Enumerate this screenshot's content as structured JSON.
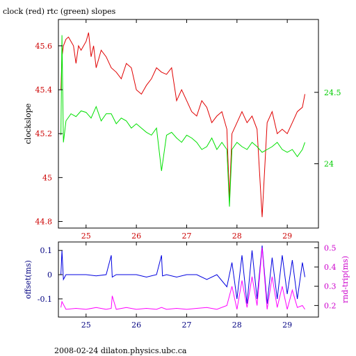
{
  "title": "clock (red) rtc (green) slopes",
  "footer": "2008-02-24  dilaton.physics.ubc.ca",
  "chart_data": [
    {
      "type": "line",
      "title": "clock (red) rtc (green) slopes",
      "xlabel": "",
      "ylabel": "clockslope",
      "xlim": [
        24.45,
        29.62
      ],
      "ylim": [
        44.77,
        45.72
      ],
      "y2lim": [
        23.55,
        25.01
      ],
      "x_ticks": [
        25,
        26,
        27,
        28,
        29
      ],
      "y_ticks": [
        "44.8",
        "45",
        "45.2",
        "45.4",
        "45.6"
      ],
      "y2_ticks": [
        "24",
        "24.5"
      ],
      "grid": false,
      "legend": "none",
      "colors": {
        "clock": "#e00000",
        "rtc": "#00e000",
        "axis_left": "#cc0000",
        "axis_right": "#00cc00"
      },
      "series": [
        {
          "name": "clock",
          "axis": "left",
          "x": [
            24.5,
            24.52,
            24.55,
            24.6,
            24.65,
            24.7,
            24.75,
            24.8,
            24.85,
            24.9,
            25.0,
            25.05,
            25.1,
            25.15,
            25.2,
            25.3,
            25.4,
            25.5,
            25.6,
            25.7,
            25.8,
            25.9,
            26.0,
            26.1,
            26.2,
            26.3,
            26.4,
            26.5,
            26.6,
            26.7,
            26.8,
            26.9,
            27.0,
            27.1,
            27.2,
            27.3,
            27.4,
            27.5,
            27.6,
            27.7,
            27.8,
            27.85,
            27.9,
            28.0,
            28.1,
            28.2,
            28.3,
            28.4,
            28.5,
            28.6,
            28.7,
            28.8,
            28.9,
            29.0,
            29.1,
            29.2,
            29.3,
            29.35
          ],
          "values": [
            45.4,
            45.55,
            45.6,
            45.63,
            45.64,
            45.62,
            45.6,
            45.52,
            45.6,
            45.58,
            45.62,
            45.66,
            45.55,
            45.6,
            45.5,
            45.58,
            45.55,
            45.5,
            45.48,
            45.45,
            45.52,
            45.5,
            45.4,
            45.38,
            45.42,
            45.45,
            45.5,
            45.48,
            45.47,
            45.5,
            45.35,
            45.4,
            45.35,
            45.3,
            45.28,
            45.35,
            45.32,
            45.25,
            45.28,
            45.3,
            45.22,
            44.9,
            45.2,
            45.25,
            45.3,
            45.25,
            45.28,
            45.22,
            44.82,
            45.25,
            45.3,
            45.2,
            45.22,
            45.2,
            45.25,
            45.3,
            45.32,
            45.38
          ]
        },
        {
          "name": "rtc",
          "axis": "right",
          "x": [
            24.5,
            24.52,
            24.55,
            24.6,
            24.7,
            24.8,
            24.9,
            25.0,
            25.1,
            25.2,
            25.3,
            25.4,
            25.5,
            25.6,
            25.7,
            25.8,
            25.9,
            26.0,
            26.1,
            26.2,
            26.3,
            26.4,
            26.5,
            26.6,
            26.7,
            26.8,
            26.9,
            27.0,
            27.1,
            27.2,
            27.3,
            27.4,
            27.5,
            27.6,
            27.7,
            27.8,
            27.85,
            27.9,
            28.0,
            28.1,
            28.2,
            28.3,
            28.4,
            28.5,
            28.6,
            28.7,
            28.8,
            28.9,
            29.0,
            29.1,
            29.2,
            29.3,
            29.35
          ],
          "values": [
            24.2,
            24.9,
            24.15,
            24.3,
            24.35,
            24.33,
            24.37,
            24.36,
            24.32,
            24.4,
            24.3,
            24.35,
            24.35,
            24.28,
            24.32,
            24.3,
            24.25,
            24.28,
            24.25,
            24.22,
            24.2,
            24.25,
            23.95,
            24.2,
            24.22,
            24.18,
            24.15,
            24.2,
            24.18,
            24.15,
            24.1,
            24.12,
            24.18,
            24.1,
            24.15,
            24.1,
            23.7,
            24.1,
            24.15,
            24.12,
            24.1,
            24.15,
            24.12,
            24.08,
            24.1,
            24.12,
            24.15,
            24.1,
            24.08,
            24.1,
            24.05,
            24.1,
            24.15
          ]
        }
      ]
    },
    {
      "type": "line",
      "title": "",
      "xlabel": "",
      "ylabel": "offset(ms)",
      "y2label": "rnd-trip(ms)",
      "xlim": [
        24.45,
        29.62
      ],
      "ylim": [
        -0.175,
        0.135
      ],
      "y2lim": [
        0.14,
        0.53
      ],
      "x_ticks": [
        25,
        26,
        27,
        28,
        29
      ],
      "y_ticks": [
        "-0.1",
        "0",
        "0.1"
      ],
      "y2_ticks": [
        "0.2",
        "0.3",
        "0.4",
        "0.5"
      ],
      "grid": false,
      "legend": "none",
      "colors": {
        "offset": "#0000e0",
        "rnd_trip": "#ff00ff"
      },
      "series": [
        {
          "name": "offset",
          "axis": "left",
          "x": [
            24.5,
            24.52,
            24.55,
            24.6,
            24.8,
            25.0,
            25.2,
            25.4,
            25.5,
            25.52,
            25.6,
            25.8,
            26.0,
            26.2,
            26.4,
            26.5,
            26.52,
            26.6,
            26.8,
            27.0,
            27.2,
            27.4,
            27.6,
            27.8,
            27.9,
            28.0,
            28.1,
            28.2,
            28.3,
            28.4,
            28.5,
            28.6,
            28.7,
            28.8,
            28.9,
            29.0,
            29.1,
            29.2,
            29.3,
            29.35
          ],
          "values": [
            0.0,
            0.1,
            -0.02,
            0.0,
            0.0,
            0.0,
            -0.005,
            0.0,
            0.08,
            -0.01,
            0.0,
            0.0,
            0.0,
            -0.01,
            0.0,
            0.08,
            -0.005,
            0.0,
            -0.01,
            0.0,
            0.0,
            -0.02,
            0.0,
            -0.05,
            0.05,
            -0.1,
            0.08,
            -0.12,
            0.1,
            -0.1,
            0.12,
            -0.12,
            0.07,
            -0.1,
            0.08,
            -0.08,
            0.06,
            -0.1,
            0.05,
            -0.01
          ]
        },
        {
          "name": "rnd-trip",
          "axis": "right",
          "x": [
            24.5,
            24.52,
            24.6,
            24.8,
            25.0,
            25.2,
            25.4,
            25.5,
            25.52,
            25.6,
            25.8,
            26.0,
            26.2,
            26.4,
            26.5,
            26.6,
            26.8,
            27.0,
            27.2,
            27.4,
            27.6,
            27.8,
            27.9,
            28.0,
            28.1,
            28.2,
            28.3,
            28.4,
            28.5,
            28.6,
            28.7,
            28.8,
            28.9,
            29.0,
            29.1,
            29.2,
            29.3,
            29.35
          ],
          "values": [
            0.19,
            0.22,
            0.18,
            0.185,
            0.18,
            0.19,
            0.18,
            0.185,
            0.25,
            0.18,
            0.19,
            0.18,
            0.185,
            0.18,
            0.19,
            0.18,
            0.185,
            0.18,
            0.185,
            0.19,
            0.18,
            0.2,
            0.3,
            0.18,
            0.33,
            0.19,
            0.35,
            0.2,
            0.5,
            0.18,
            0.35,
            0.19,
            0.3,
            0.18,
            0.28,
            0.19,
            0.2,
            0.18
          ]
        }
      ]
    }
  ]
}
